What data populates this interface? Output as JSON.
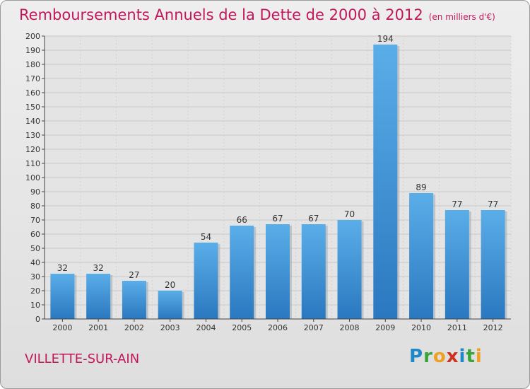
{
  "header": {
    "title": "Remboursements Annuels de la Dette de 2000 à 2012",
    "unit": "(en milliers d'€)"
  },
  "footer": {
    "commune": "VILLETTE-SUR-AIN",
    "logo_letters": [
      "P",
      "r",
      "o",
      "x",
      "i",
      "t",
      "i"
    ],
    "logo_colors": [
      "#1e88c8",
      "#3ba33b",
      "#f0a020",
      "#d03020",
      "#1e88c8",
      "#3ba33b",
      "#f0a020"
    ]
  },
  "chart_data": {
    "type": "bar",
    "title": "Remboursements Annuels de la Dette de 2000 à 2012",
    "subtitle": "(en milliers d'€)",
    "categories": [
      "2000",
      "2001",
      "2002",
      "2003",
      "2004",
      "2005",
      "2006",
      "2007",
      "2008",
      "2009",
      "2010",
      "2011",
      "2012"
    ],
    "values": [
      32,
      32,
      27,
      20,
      54,
      66,
      67,
      67,
      70,
      194,
      89,
      77,
      77
    ],
    "ylim": [
      0,
      200
    ],
    "yticks": [
      0,
      10,
      20,
      30,
      40,
      50,
      60,
      70,
      80,
      90,
      100,
      110,
      120,
      130,
      140,
      150,
      160,
      170,
      180,
      190,
      200
    ],
    "grid": true,
    "bar_color": "#3a8fd6",
    "bar_color_light": "#5aaee8",
    "bar_color_dark": "#2a78c0",
    "title_color": "#c2185b"
  }
}
